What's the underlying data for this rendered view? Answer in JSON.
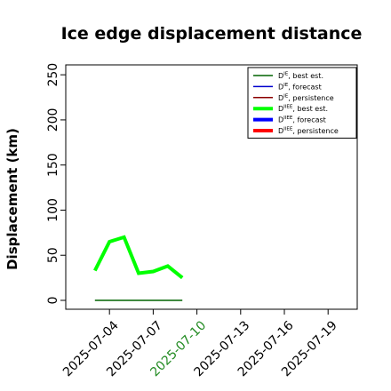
{
  "chart_data": {
    "type": "line",
    "title": "Ice edge displacement distance",
    "ylabel": "Displacement (km)",
    "xlabel": "",
    "ylim": [
      0,
      260
    ],
    "yticks": [
      0,
      50,
      100,
      150,
      200,
      250
    ],
    "xlim": [
      "2025-07-01",
      "2025-07-21"
    ],
    "xticks": [
      "2025-07-04",
      "2025-07-07",
      "2025-07-10",
      "2025-07-13",
      "2025-07-16",
      "2025-07-19"
    ],
    "highlight_xtick": "2025-07-10",
    "highlight_color": "#228b22",
    "grid": false,
    "legend_position": "top-right",
    "legend": [
      {
        "base": "D",
        "sup": "IE",
        "text": ", best est.",
        "color": "#006400",
        "thick": false
      },
      {
        "base": "D",
        "sup": "IE",
        "text": ", forecast",
        "color": "#0000cd",
        "thick": false
      },
      {
        "base": "D",
        "sup": "IE",
        "text": ", persistence",
        "color": "#8b0000",
        "thick": false
      },
      {
        "base": "D",
        "sup": "IIEE",
        "text": ", best est.",
        "color": "#00ff00",
        "thick": true
      },
      {
        "base": "D",
        "sup": "IIEE",
        "text": ", forecast",
        "color": "#0000ff",
        "thick": true
      },
      {
        "base": "D",
        "sup": "IIEE",
        "text": ", persistence",
        "color": "#ff0000",
        "thick": true
      }
    ],
    "series": [
      {
        "name": "D^IE, best est.",
        "color": "#006400",
        "width": 1.6,
        "x": [
          "2025-07-03",
          "2025-07-04",
          "2025-07-05",
          "2025-07-06",
          "2025-07-07",
          "2025-07-08",
          "2025-07-09"
        ],
        "y": [
          0,
          0,
          0,
          0,
          0,
          0,
          0
        ]
      },
      {
        "name": "D^IIEE, best est.",
        "color": "#00ff00",
        "width": 4,
        "x": [
          "2025-07-03",
          "2025-07-04",
          "2025-07-05",
          "2025-07-06",
          "2025-07-07",
          "2025-07-08",
          "2025-07-09"
        ],
        "y": [
          33,
          65,
          70,
          30,
          32,
          38,
          25
        ]
      }
    ]
  }
}
